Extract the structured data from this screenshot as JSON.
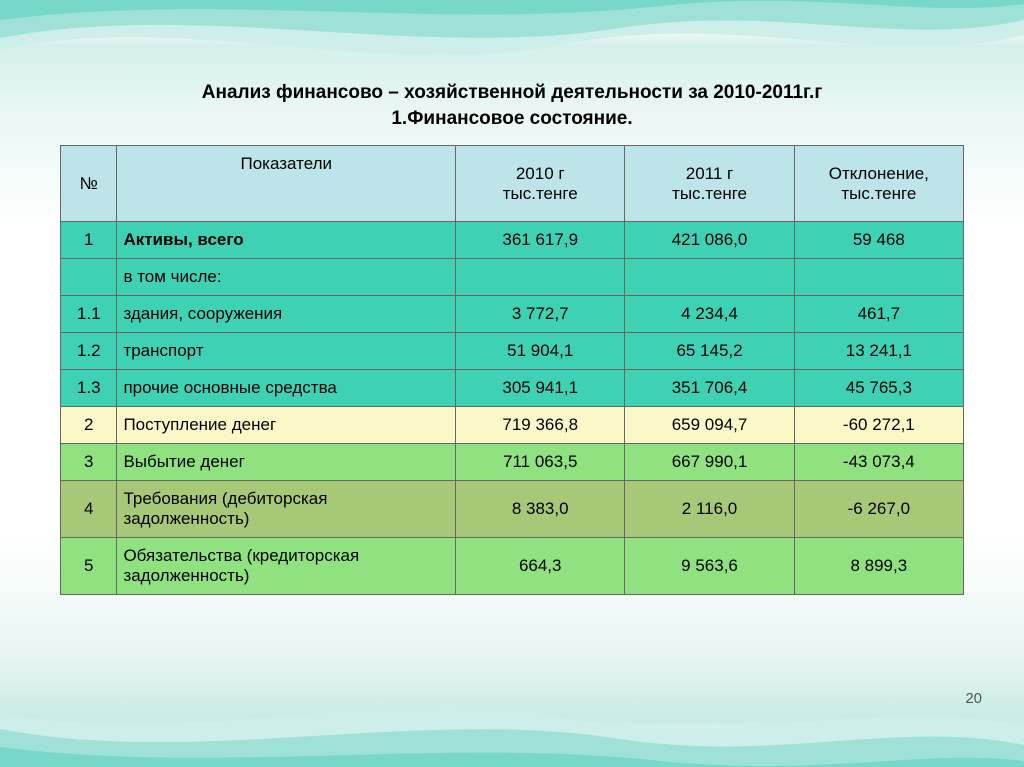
{
  "title_line1": "Анализ финансово – хозяйственной деятельности за 2010-2011г.г",
  "title_line2": "1.Финансовое состояние.",
  "page_number": "20",
  "table": {
    "columns": [
      "№",
      "Показатели",
      "2010 г\nтыс.тенге",
      "2011 г\nтыс.тенге",
      "Отклонение,\nтыс.тенге"
    ],
    "rows": [
      {
        "num": "1",
        "ind": "Активы, всего",
        "y1": "361 617,9",
        "y2": "421 086,0",
        "dev": "59 468",
        "rowClass": "bg-teal",
        "bold": true
      },
      {
        "num": "",
        "ind": "в том числе:",
        "y1": "",
        "y2": "",
        "dev": "",
        "rowClass": "bg-teal"
      },
      {
        "num": "1.1",
        "ind": "здания, сооружения",
        "y1": "3 772,7",
        "y2": "4 234,4",
        "dev": "461,7",
        "rowClass": "bg-teal"
      },
      {
        "num": "1.2",
        "ind": "транспорт",
        "y1": "51 904,1",
        "y2": "65 145,2",
        "dev": "13 241,1",
        "rowClass": "bg-teal"
      },
      {
        "num": "1.3",
        "ind": "прочие основные средства",
        "y1": "305 941,1",
        "y2": "351 706,4",
        "dev": "45 765,3",
        "rowClass": "bg-teal"
      },
      {
        "num": "2",
        "ind": "Поступление денег",
        "y1": "719 366,8",
        "y2": "659 094,7",
        "dev": "-60 272,1",
        "rowClass": "bg-yellow"
      },
      {
        "num": "3",
        "ind": "Выбытие денег",
        "y1": "711 063,5",
        "y2": "667 990,1",
        "dev": "-43 073,4",
        "rowClass": "bg-green"
      },
      {
        "num": "4",
        "ind": "Требования (дебиторская задолженность)",
        "y1": "8 383,0",
        "y2": "2 116,0",
        "dev": "-6 267,0",
        "rowClass": "bg-olive"
      },
      {
        "num": "5",
        "ind": "Обязательства (кредиторская задолженность)",
        "y1": "664,3",
        "y2": "9 563,6",
        "dev": "8 899,3",
        "rowClass": "bg-green"
      }
    ]
  },
  "colors": {
    "header_bg": "#bde4e8",
    "teal": "#3fd1b4",
    "yellow": "#fbf8c8",
    "green": "#8fe27f",
    "olive": "#a7c877",
    "border": "#666666",
    "wave_light": "#d5f0ec",
    "wave_mid": "#8fd9ce",
    "wave_deep": "#3fc8b5"
  }
}
